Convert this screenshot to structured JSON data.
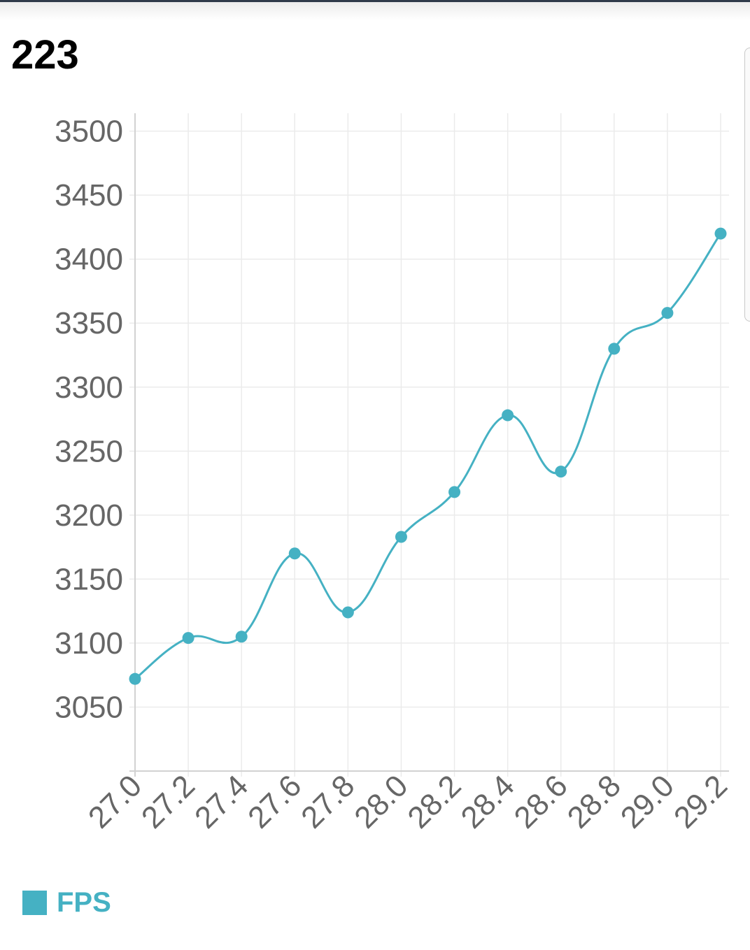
{
  "header": {
    "title": "223"
  },
  "colors": {
    "series": "#45b1c3",
    "grid": "#ebebeb",
    "axis": "#d2d2d2",
    "tick_text": "#666666"
  },
  "legend": {
    "label": "FPS",
    "icon": "square-swatch"
  },
  "chart_data": {
    "type": "line",
    "x": [
      27.0,
      27.2,
      27.4,
      27.6,
      27.8,
      28.0,
      28.2,
      28.4,
      28.6,
      28.8,
      29.0,
      29.2
    ],
    "x_tick_labels": [
      "27.0",
      "27.2",
      "27.4",
      "27.6",
      "27.8",
      "28.0",
      "28.2",
      "28.4",
      "28.6",
      "28.8",
      "29.0",
      "29.2"
    ],
    "series": [
      {
        "name": "FPS",
        "values": [
          3072,
          3104,
          3105,
          3170,
          3124,
          3183,
          3218,
          3278,
          3234,
          3330,
          3358,
          3420
        ]
      }
    ],
    "y_ticks": [
      3050,
      3100,
      3150,
      3200,
      3250,
      3300,
      3350,
      3400,
      3450,
      3500
    ],
    "y_tick_labels": [
      "3050",
      "3100",
      "3150",
      "3200",
      "3250",
      "3300",
      "3350",
      "3400",
      "3450",
      "3500"
    ],
    "ylim": [
      3000,
      3514
    ],
    "title": "",
    "xlabel": "",
    "ylabel": "",
    "grid": true,
    "smooth": true,
    "legend_position": "bottom-left"
  }
}
